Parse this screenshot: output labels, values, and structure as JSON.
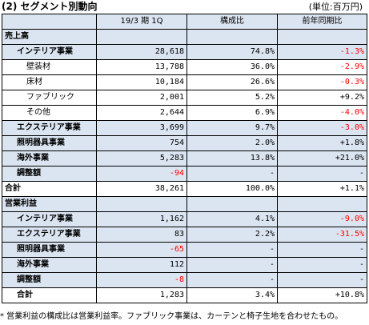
{
  "title": "(2) セグメント別動向",
  "unit_note": "(単位:百万円)",
  "columns": [
    "",
    "19/3 期 1Q",
    "構成比",
    "前年同期比"
  ],
  "rows": [
    {
      "label": "売上高",
      "level": 0,
      "band": true,
      "v": [
        "",
        "",
        ""
      ],
      "neg": [
        false,
        false,
        false
      ]
    },
    {
      "label": "インテリア事業",
      "level": 1,
      "band": true,
      "v": [
        "28,618",
        "74.8%",
        "-1.3%"
      ],
      "neg": [
        false,
        false,
        true
      ]
    },
    {
      "label": "壁装材",
      "level": 2,
      "band": false,
      "v": [
        "13,788",
        "36.0%",
        "-2.9%"
      ],
      "neg": [
        false,
        false,
        true
      ]
    },
    {
      "label": "床材",
      "level": 2,
      "band": false,
      "v": [
        "10,184",
        "26.6%",
        "-0.3%"
      ],
      "neg": [
        false,
        false,
        true
      ]
    },
    {
      "label": "ファブリック",
      "level": 2,
      "band": false,
      "v": [
        "2,001",
        "5.2%",
        "+9.2%"
      ],
      "neg": [
        false,
        false,
        false
      ]
    },
    {
      "label": "その他",
      "level": 2,
      "band": false,
      "v": [
        "2,644",
        "6.9%",
        "-4.0%"
      ],
      "neg": [
        false,
        false,
        true
      ]
    },
    {
      "label": "エクステリア事業",
      "level": 1,
      "band": true,
      "v": [
        "3,699",
        "9.7%",
        "-3.0%"
      ],
      "neg": [
        false,
        false,
        true
      ]
    },
    {
      "label": "照明器具事業",
      "level": 1,
      "band": true,
      "v": [
        "754",
        "2.0%",
        "+1.8%"
      ],
      "neg": [
        false,
        false,
        false
      ]
    },
    {
      "label": "海外事業",
      "level": 1,
      "band": true,
      "v": [
        "5,283",
        "13.8%",
        "+21.0%"
      ],
      "neg": [
        false,
        false,
        false
      ]
    },
    {
      "label": "調整額",
      "level": 1,
      "band": true,
      "v": [
        "-94",
        "-",
        "-"
      ],
      "neg": [
        true,
        false,
        false
      ]
    },
    {
      "label": "合計",
      "level": 0,
      "band": false,
      "v": [
        "38,261",
        "100.0%",
        "+1.1%"
      ],
      "neg": [
        false,
        false,
        false
      ]
    },
    {
      "label": "営業利益",
      "level": 0,
      "band": true,
      "v": [
        "",
        "",
        ""
      ],
      "neg": [
        false,
        false,
        false
      ]
    },
    {
      "label": "インテリア事業",
      "level": 1,
      "band": true,
      "v": [
        "1,162",
        "4.1%",
        "-9.0%"
      ],
      "neg": [
        false,
        false,
        true
      ]
    },
    {
      "label": "エクステリア事業",
      "level": 1,
      "band": true,
      "v": [
        "83",
        "2.2%",
        "-31.5%"
      ],
      "neg": [
        false,
        false,
        true
      ]
    },
    {
      "label": "照明器具事業",
      "level": 1,
      "band": true,
      "v": [
        "-65",
        "-",
        "-"
      ],
      "neg": [
        true,
        false,
        false
      ]
    },
    {
      "label": "海外事業",
      "level": 1,
      "band": true,
      "v": [
        "112",
        "-",
        "-"
      ],
      "neg": [
        false,
        false,
        false
      ]
    },
    {
      "label": "調整額",
      "level": 1,
      "band": true,
      "v": [
        "-8",
        "-",
        "-"
      ],
      "neg": [
        true,
        false,
        false
      ]
    },
    {
      "label": "合計",
      "level": 1,
      "band": false,
      "v": [
        "1,283",
        "3.4%",
        "+10.8%"
      ],
      "neg": [
        false,
        false,
        false
      ]
    }
  ],
  "footnote": "* 営業利益の構成比は営業利益率。ファブリック事業は、カーテンと椅子生地を合わせたもの。",
  "colors": {
    "header_band": "#dbe5f1",
    "negative": "#ff0000",
    "border": "#000000"
  }
}
